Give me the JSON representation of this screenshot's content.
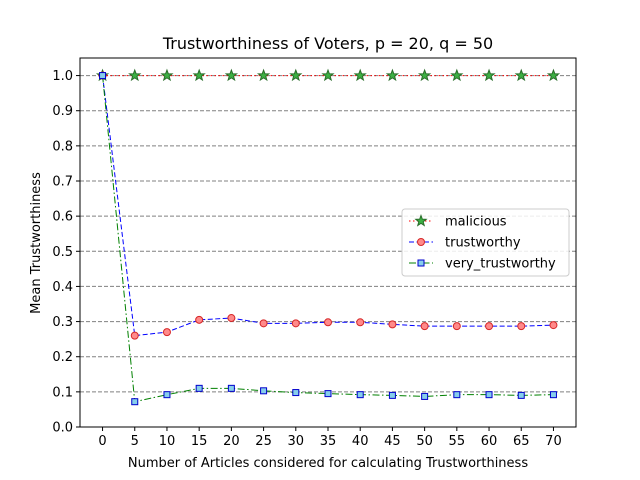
{
  "chart_data": {
    "type": "line",
    "title": "Trustworthiness of Voters, p = 20, q = 50",
    "xlabel": "Number of Articles considered for calculating Trustworthiness",
    "ylabel": "Mean Trustworthiness",
    "x": [
      0,
      5,
      10,
      15,
      20,
      25,
      30,
      35,
      40,
      45,
      50,
      55,
      60,
      65,
      70
    ],
    "x_tick_labels": [
      "0",
      "5",
      "10",
      "15",
      "20",
      "25",
      "30",
      "35",
      "40",
      "45",
      "50",
      "55",
      "60",
      "65",
      "70"
    ],
    "y_tick_labels": [
      "0.0",
      "0.1",
      "0.2",
      "0.3",
      "0.4",
      "0.5",
      "0.6",
      "0.7",
      "0.8",
      "0.9",
      "1.0"
    ],
    "xlim": [
      -3.5,
      73.5
    ],
    "ylim": [
      0.0,
      1.05
    ],
    "grid": "horizontal dashed",
    "legend_position": "center-right",
    "series": [
      {
        "name": "malicious",
        "values": [
          1.0,
          1.0,
          1.0,
          1.0,
          1.0,
          1.0,
          1.0,
          1.0,
          1.0,
          1.0,
          1.0,
          1.0,
          1.0,
          1.0,
          1.0
        ],
        "line_color": "#ff0000",
        "marker": "star",
        "marker_fill": "#3cb043",
        "marker_edge": "#2a6d2a",
        "line_style": "dotted"
      },
      {
        "name": "trustworthy",
        "values": [
          1.0,
          0.26,
          0.27,
          0.305,
          0.31,
          0.295,
          0.295,
          0.298,
          0.298,
          0.292,
          0.287,
          0.287,
          0.287,
          0.287,
          0.29
        ],
        "line_color": "#0000ff",
        "marker": "circle",
        "marker_fill": "#ff8a8a",
        "marker_edge": "#d62728",
        "line_style": "dashed"
      },
      {
        "name": "very_trustworthy",
        "values": [
          1.0,
          0.072,
          0.092,
          0.11,
          0.11,
          0.103,
          0.098,
          0.095,
          0.092,
          0.09,
          0.087,
          0.092,
          0.092,
          0.09,
          0.092
        ],
        "line_color": "#008000",
        "marker": "square",
        "marker_fill": "#87ceeb",
        "marker_edge": "#0000cc",
        "line_style": "dashdot"
      }
    ]
  }
}
